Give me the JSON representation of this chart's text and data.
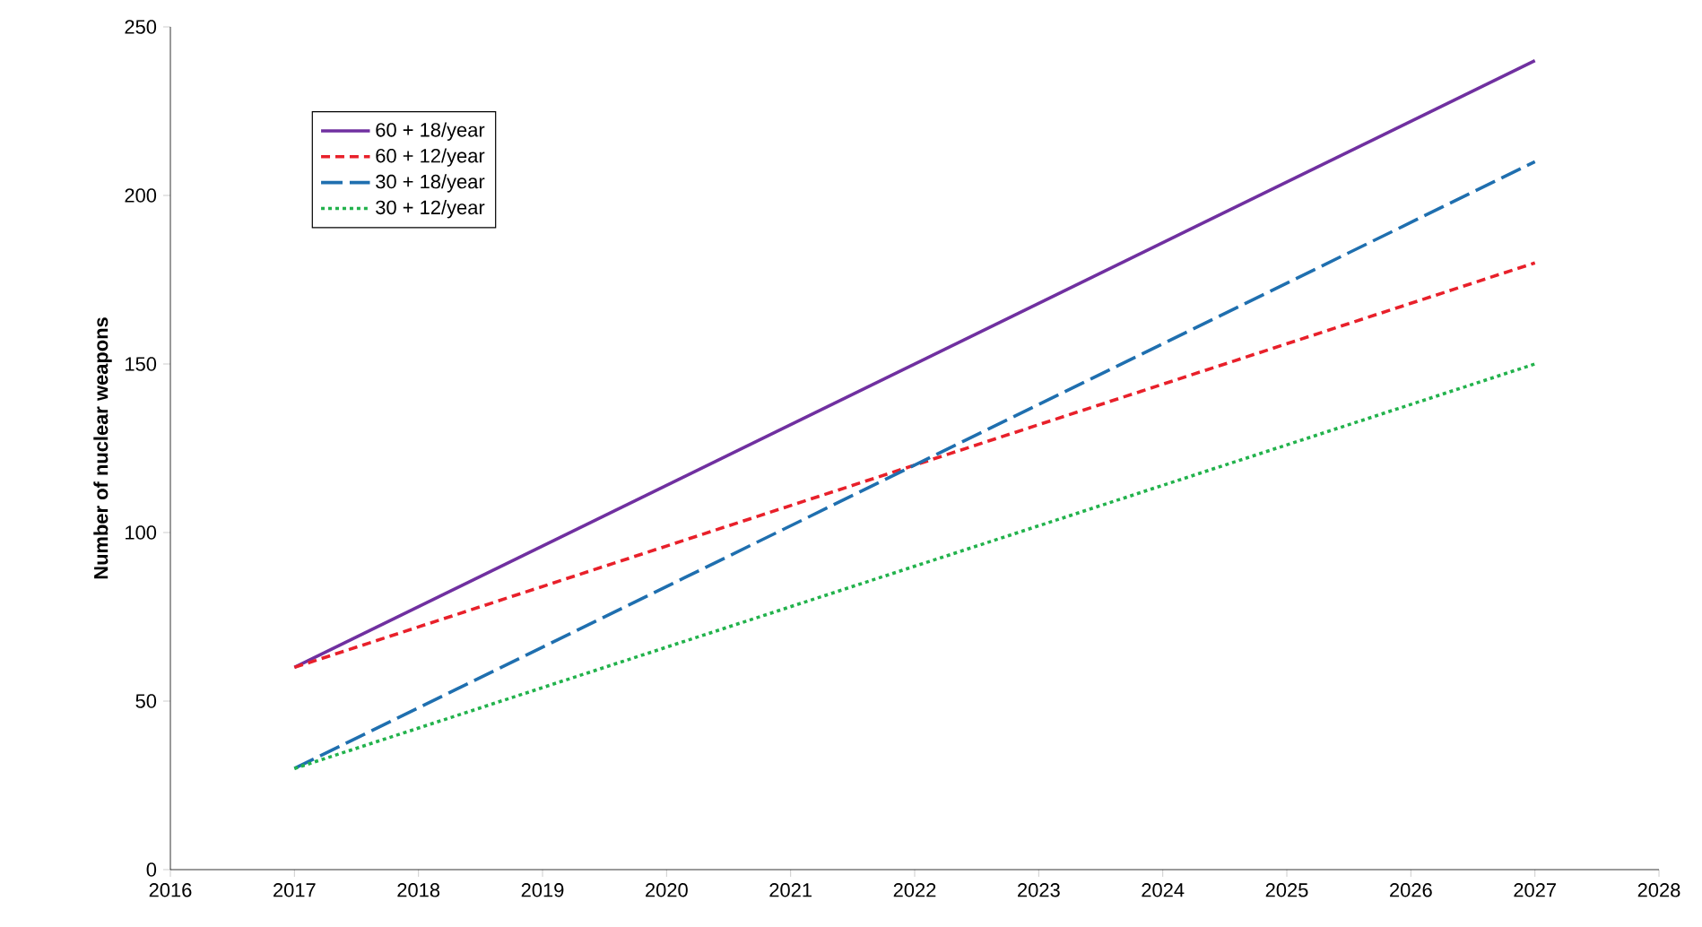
{
  "chart_data": {
    "type": "line",
    "ylabel": "Number of nuclear weapons",
    "x": [
      2017,
      2027
    ],
    "series": [
      {
        "name": "60 + 18/year",
        "color": "#7030a0",
        "line_style": "solid",
        "values": [
          60,
          240
        ]
      },
      {
        "name": "60 + 12/year",
        "color": "#e8202a",
        "line_style": "dashed",
        "values": [
          60,
          180
        ]
      },
      {
        "name": "30 + 18/year",
        "color": "#1f6faf",
        "line_style": "dashed",
        "values": [
          30,
          210
        ]
      },
      {
        "name": "30 + 12/year",
        "color": "#22b24c",
        "line_style": "dotted",
        "values": [
          30,
          150
        ]
      }
    ],
    "xlim": [
      2016,
      2028
    ],
    "xticks": [
      2016,
      2017,
      2018,
      2019,
      2020,
      2021,
      2022,
      2023,
      2024,
      2025,
      2026,
      2027,
      2028
    ],
    "ylim": [
      0,
      250
    ],
    "yticks": [
      0,
      50,
      100,
      150,
      200,
      250
    ],
    "grid": false,
    "legend": "top left",
    "marker": "none"
  }
}
